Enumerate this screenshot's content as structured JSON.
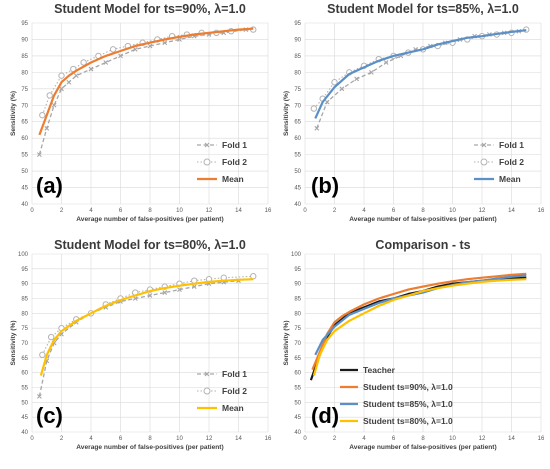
{
  "colors": {
    "fold1": "#a6a6a6",
    "fold2": "#b3b3b3",
    "teacher": "#1a1a1a",
    "ts90": "#ed7d31",
    "ts85": "#5b8fc7",
    "ts80": "#ffc000",
    "grid": "#d9d9d9"
  },
  "chart_data": [
    {
      "id": "a",
      "panel_label": "(a)",
      "type": "line",
      "title": "Student Model for ts=90%, λ=1.0",
      "xlabel": "Average number of false-positives (per patient)",
      "ylabel": "Sensitivity (%)",
      "xlim": [
        0,
        16
      ],
      "ylim": [
        40,
        95
      ],
      "xticks": [
        0,
        2,
        4,
        6,
        8,
        10,
        12,
        14,
        16
      ],
      "yticks": [
        40,
        45,
        50,
        55,
        60,
        65,
        70,
        75,
        80,
        85,
        90,
        95
      ],
      "grid": true,
      "legend_position": "bottom-right",
      "series": [
        {
          "name": "Fold 1",
          "style": "dashed-marker-x",
          "color_key": "fold1",
          "x": [
            0.5,
            1,
            1.5,
            2,
            2.5,
            3,
            4,
            5,
            6,
            7,
            8,
            9,
            10,
            11,
            12,
            13,
            14.5
          ],
          "y": [
            55,
            63,
            70,
            75,
            77,
            79,
            81,
            83,
            85,
            87,
            88,
            89,
            90,
            91,
            91.5,
            92,
            93
          ]
        },
        {
          "name": "Fold 2",
          "style": "dotted-marker-circle",
          "color_key": "fold2",
          "x": [
            0.7,
            1.2,
            2,
            2.8,
            3.5,
            4.5,
            5.5,
            6.5,
            7.5,
            8.5,
            9.5,
            10.5,
            11.5,
            12.5,
            13.5,
            15
          ],
          "y": [
            67,
            73,
            79,
            81,
            83,
            85,
            87,
            88,
            89,
            90,
            91,
            91.5,
            92,
            92,
            92.5,
            93
          ]
        },
        {
          "name": "Mean",
          "style": "solid",
          "color_key": "ts90",
          "x": [
            0.5,
            1,
            1.5,
            2,
            2.5,
            3,
            4,
            5,
            6,
            7,
            8,
            9,
            10,
            11,
            12,
            13,
            14,
            15
          ],
          "y": [
            61,
            67,
            73,
            77,
            79,
            80.5,
            83,
            85,
            86.5,
            88,
            89,
            90,
            90.8,
            91.5,
            92,
            92.5,
            93,
            93.3
          ]
        }
      ]
    },
    {
      "id": "b",
      "panel_label": "(b)",
      "type": "line",
      "title": "Student Model for ts=85%, λ=1.0",
      "xlabel": "Average number of false-positives (per patient)",
      "ylabel": "Sensitivity (%)",
      "xlim": [
        0,
        16
      ],
      "ylim": [
        40,
        95
      ],
      "xticks": [
        0,
        2,
        4,
        6,
        8,
        10,
        12,
        14,
        16
      ],
      "yticks": [
        40,
        45,
        50,
        55,
        60,
        65,
        70,
        75,
        80,
        85,
        90,
        95
      ],
      "grid": true,
      "legend_position": "bottom-right",
      "series": [
        {
          "name": "Fold 1",
          "style": "dashed-marker-x",
          "color_key": "fold1",
          "x": [
            0.8,
            1.5,
            2.5,
            3.5,
            4.5,
            5.5,
            6.5,
            7.5,
            8.5,
            9.5,
            10.5,
            11.5,
            12.5,
            13.5,
            14.5
          ],
          "y": [
            63,
            71,
            75,
            78,
            80,
            83,
            85,
            87,
            88,
            89,
            90,
            91,
            91.5,
            92,
            92.5
          ]
        },
        {
          "name": "Fold 2",
          "style": "dotted-marker-circle",
          "color_key": "fold2",
          "x": [
            0.6,
            1.2,
            2,
            3,
            4,
            5,
            6,
            7,
            8,
            9,
            10,
            11,
            12,
            13,
            14,
            15
          ],
          "y": [
            69,
            72,
            77,
            80,
            82,
            84,
            85,
            86,
            87,
            88,
            89,
            90,
            91,
            91.5,
            92,
            93
          ]
        },
        {
          "name": "Mean",
          "style": "solid",
          "color_key": "ts85",
          "x": [
            0.7,
            1.2,
            2,
            3,
            4,
            5,
            6,
            7,
            8,
            9,
            10,
            11,
            12,
            13,
            14,
            15
          ],
          "y": [
            66,
            71,
            75.5,
            79.5,
            81.5,
            83.5,
            85,
            86,
            87,
            88.5,
            89.5,
            90.5,
            91,
            91.7,
            92.3,
            92.8
          ]
        }
      ]
    },
    {
      "id": "c",
      "panel_label": "(c)",
      "type": "line",
      "title": "Student Model for ts=80%, λ=1.0",
      "xlabel": "Average number of false-positives (per patient)",
      "ylabel": "Sensitivity (%)",
      "xlim": [
        0,
        16
      ],
      "ylim": [
        40,
        100
      ],
      "xticks": [
        0,
        2,
        4,
        6,
        8,
        10,
        12,
        14,
        16
      ],
      "yticks": [
        40,
        45,
        50,
        55,
        60,
        65,
        70,
        75,
        80,
        85,
        90,
        95,
        100
      ],
      "grid": true,
      "legend_position": "bottom-right",
      "series": [
        {
          "name": "Fold 1",
          "style": "dashed-marker-x",
          "color_key": "fold1",
          "x": [
            0.5,
            1,
            1.5,
            2,
            3,
            4,
            5,
            6,
            7,
            8,
            9,
            10,
            11,
            12,
            13,
            14
          ],
          "y": [
            52,
            64,
            70,
            73,
            77,
            80,
            82,
            84,
            85,
            86,
            87,
            88,
            89,
            90,
            90.5,
            91
          ]
        },
        {
          "name": "Fold 2",
          "style": "dotted-marker-circle",
          "color_key": "fold2",
          "x": [
            0.7,
            1.3,
            2,
            3,
            4,
            5,
            6,
            7,
            8,
            9,
            10,
            11,
            12,
            13,
            15
          ],
          "y": [
            66,
            72,
            75,
            78,
            80,
            83,
            85,
            87,
            88,
            89,
            90,
            91,
            91.5,
            92,
            92.5
          ]
        },
        {
          "name": "Mean",
          "style": "solid",
          "color_key": "ts80",
          "x": [
            0.6,
            1,
            1.5,
            2,
            3,
            4,
            5,
            6,
            7,
            8,
            9,
            10,
            11,
            12,
            13,
            14,
            15
          ],
          "y": [
            59,
            66,
            71,
            74,
            77.5,
            80,
            82.5,
            84.5,
            86,
            87.5,
            88.5,
            89.3,
            90,
            90.6,
            91,
            91.3,
            91.5
          ]
        }
      ]
    },
    {
      "id": "d",
      "panel_label": "(d)",
      "type": "line",
      "title": "Comparison - ts",
      "xlabel": "Average number of false-positives (per patient)",
      "ylabel": "Sensitivity (%)",
      "xlim": [
        0,
        16
      ],
      "ylim": [
        40,
        100
      ],
      "xticks": [
        0,
        2,
        4,
        6,
        8,
        10,
        12,
        14,
        16
      ],
      "yticks": [
        40,
        45,
        50,
        55,
        60,
        65,
        70,
        75,
        80,
        85,
        90,
        95,
        100
      ],
      "grid": true,
      "legend_position": "bottom-right",
      "series": [
        {
          "name": "Teacher",
          "style": "solid",
          "color_key": "teacher",
          "x": [
            0.4,
            1,
            1.5,
            2,
            3,
            4,
            5,
            6,
            7,
            8,
            9,
            10,
            11,
            12,
            13,
            14,
            15
          ],
          "y": [
            57.5,
            66,
            72,
            76,
            80,
            82,
            84,
            85,
            86.5,
            87.5,
            89,
            90,
            90.5,
            91,
            91.5,
            91.8,
            92
          ]
        },
        {
          "name": "Student ts=90%, λ=1.0",
          "style": "solid",
          "color_key": "ts90",
          "x": [
            0.5,
            1,
            1.5,
            2,
            2.5,
            3,
            4,
            5,
            6,
            7,
            8,
            9,
            10,
            11,
            12,
            13,
            14,
            15
          ],
          "y": [
            61,
            67,
            73,
            77,
            79,
            80.5,
            83,
            85,
            86.5,
            88,
            89,
            90,
            90.8,
            91.5,
            92,
            92.5,
            93,
            93.3
          ]
        },
        {
          "name": "Student ts=85%, λ=1.0",
          "style": "solid",
          "color_key": "ts85",
          "x": [
            0.7,
            1.2,
            2,
            3,
            4,
            5,
            6,
            7,
            8,
            9,
            10,
            11,
            12,
            13,
            14,
            15
          ],
          "y": [
            66,
            71,
            75.5,
            79.5,
            81.5,
            83.5,
            85,
            86,
            87,
            88.5,
            89.5,
            90.5,
            91,
            91.7,
            92.3,
            92.8
          ]
        },
        {
          "name": "Student ts=80%, λ=1.0",
          "style": "solid",
          "color_key": "ts80",
          "x": [
            0.6,
            1,
            1.5,
            2,
            3,
            4,
            5,
            6,
            7,
            8,
            9,
            10,
            11,
            12,
            13,
            14,
            15
          ],
          "y": [
            59,
            66,
            71,
            74,
            77.5,
            80,
            82.5,
            84.5,
            86,
            87.5,
            88.5,
            89.3,
            90,
            90.6,
            91,
            91.3,
            91.5
          ]
        }
      ]
    }
  ]
}
